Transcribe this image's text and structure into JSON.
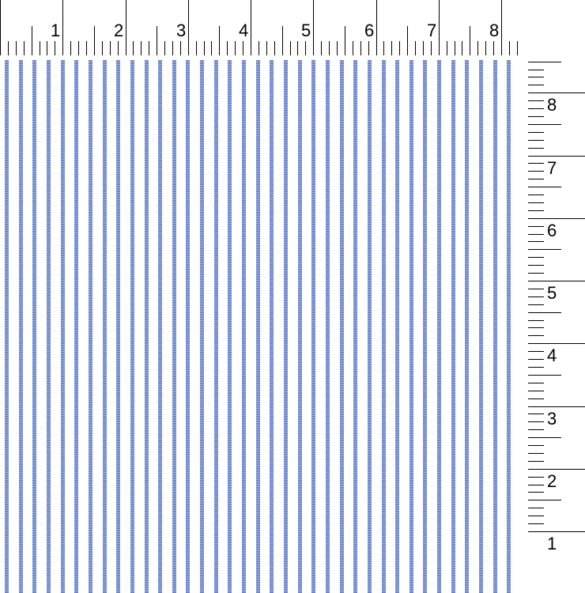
{
  "top_ruler": {
    "labels": [
      "1",
      "2",
      "3",
      "4",
      "5",
      "6",
      "7",
      "8"
    ]
  },
  "right_ruler": {
    "labels": [
      "8",
      "7",
      "6",
      "5",
      "4",
      "3",
      "2",
      "1"
    ]
  },
  "swatch": {
    "pattern": "vertical-stripes",
    "stripe_color": "#6d86cf",
    "background_color": "#ffffff"
  }
}
